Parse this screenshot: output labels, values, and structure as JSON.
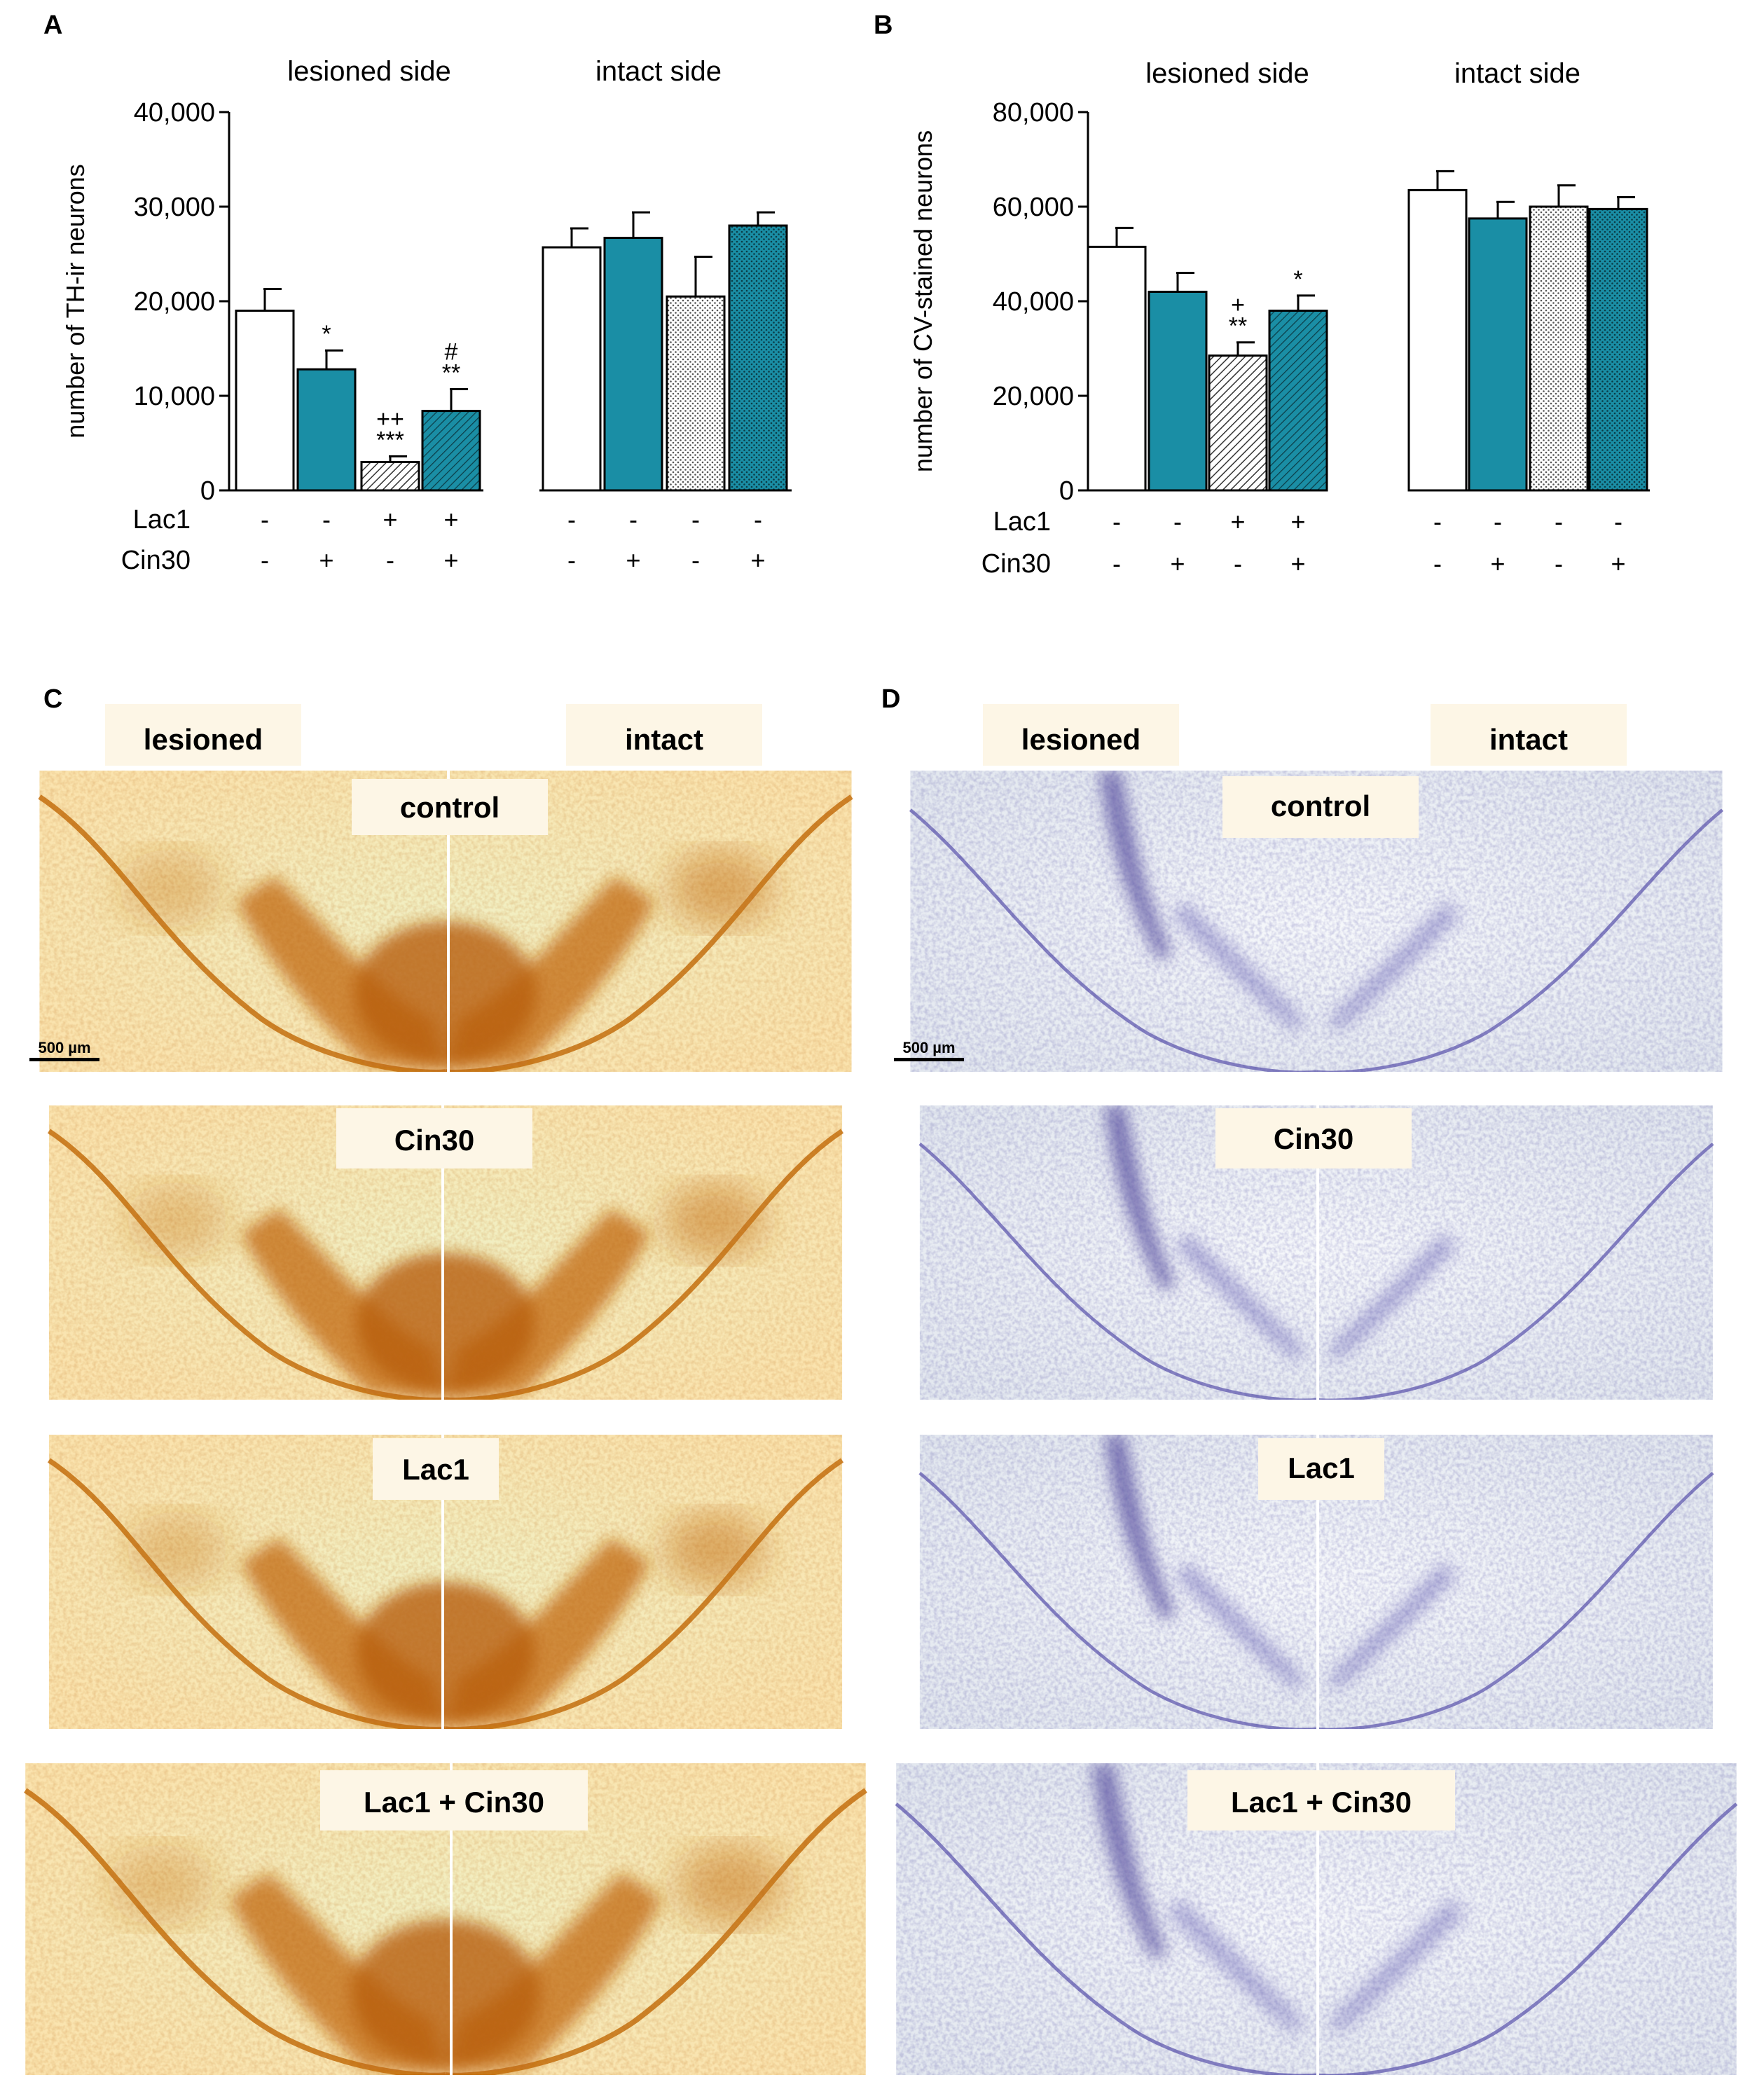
{
  "panels": {
    "A": "A",
    "B": "B",
    "C": "C",
    "D": "D"
  },
  "chart_data": [
    {
      "type": "bar",
      "panel": "A",
      "ylabel": "number of TH-ir neurons",
      "ylim": [
        0,
        40000
      ],
      "ytick_values": [
        0,
        10000,
        20000,
        30000,
        40000
      ],
      "ytick_labels": [
        "0",
        "10,000",
        "20,000",
        "30,000",
        "40,000"
      ],
      "group_labels": [
        "lesioned side",
        "intact side"
      ],
      "row_labels": [
        "Lac1",
        "Cin30"
      ],
      "categories": [
        {
          "group": 0,
          "lac1": "-",
          "cin30": "-",
          "pattern": "white",
          "value": 19000,
          "error": 2300,
          "sig": []
        },
        {
          "group": 0,
          "lac1": "-",
          "cin30": "+",
          "pattern": "teal",
          "value": 12800,
          "error": 2000,
          "sig": [
            "*"
          ]
        },
        {
          "group": 0,
          "lac1": "+",
          "cin30": "-",
          "pattern": "hatch",
          "value": 3000,
          "error": 600,
          "sig": [
            "***",
            "++"
          ]
        },
        {
          "group": 0,
          "lac1": "+",
          "cin30": "+",
          "pattern": "tealhatch",
          "value": 8400,
          "error": 2300,
          "sig": [
            "**",
            "#"
          ]
        },
        {
          "group": 1,
          "lac1": "-",
          "cin30": "-",
          "pattern": "white",
          "value": 25700,
          "error": 2000,
          "sig": []
        },
        {
          "group": 1,
          "lac1": "-",
          "cin30": "+",
          "pattern": "teal",
          "value": 26700,
          "error": 2700,
          "sig": []
        },
        {
          "group": 1,
          "lac1": "-",
          "cin30": "-",
          "pattern": "dots",
          "value": 20500,
          "error": 4200,
          "sig": []
        },
        {
          "group": 1,
          "lac1": "-",
          "cin30": "+",
          "pattern": "tealdots",
          "value": 28000,
          "error": 1400,
          "sig": []
        }
      ]
    },
    {
      "type": "bar",
      "panel": "B",
      "ylabel": "number of CV-stained neurons",
      "ylim": [
        0,
        80000
      ],
      "ytick_values": [
        0,
        20000,
        40000,
        60000,
        80000
      ],
      "ytick_labels": [
        "0",
        "20,000",
        "40,000",
        "60,000",
        "80,000"
      ],
      "group_labels": [
        "lesioned side",
        "intact side"
      ],
      "row_labels": [
        "Lac1",
        "Cin30"
      ],
      "categories": [
        {
          "group": 0,
          "lac1": "-",
          "cin30": "-",
          "pattern": "white",
          "value": 51500,
          "error": 4000,
          "sig": []
        },
        {
          "group": 0,
          "lac1": "-",
          "cin30": "+",
          "pattern": "teal",
          "value": 42000,
          "error": 4000,
          "sig": []
        },
        {
          "group": 0,
          "lac1": "+",
          "cin30": "-",
          "pattern": "hatch",
          "value": 28500,
          "error": 2800,
          "sig": [
            "**",
            "+"
          ]
        },
        {
          "group": 0,
          "lac1": "+",
          "cin30": "+",
          "pattern": "tealhatch",
          "value": 38000,
          "error": 3200,
          "sig": [
            "*"
          ]
        },
        {
          "group": 1,
          "lac1": "-",
          "cin30": "-",
          "pattern": "white",
          "value": 63500,
          "error": 4000,
          "sig": []
        },
        {
          "group": 1,
          "lac1": "-",
          "cin30": "+",
          "pattern": "teal",
          "value": 57500,
          "error": 3500,
          "sig": []
        },
        {
          "group": 1,
          "lac1": "-",
          "cin30": "-",
          "pattern": "dots",
          "value": 60000,
          "error": 4500,
          "sig": []
        },
        {
          "group": 1,
          "lac1": "-",
          "cin30": "+",
          "pattern": "tealdots",
          "value": 59500,
          "error": 2500,
          "sig": []
        }
      ]
    }
  ],
  "colors": {
    "teal": "#1a8ea5",
    "axis": "#000000",
    "th_bg": "#f8edc0",
    "th_stain": "#c9690c",
    "cv_bg": "#eef1f6",
    "cv_stain": "#5a55a8",
    "label_bg": "#fdf6e6"
  },
  "micrographs": {
    "C": {
      "side_labels": [
        "lesioned",
        "intact"
      ],
      "rows": [
        "control",
        "Cin30",
        "Lac1",
        "Lac1 + Cin30"
      ],
      "scale_bar": "500 µm"
    },
    "D": {
      "side_labels": [
        "lesioned",
        "intact"
      ],
      "rows": [
        "control",
        "Cin30",
        "Lac1",
        "Lac1 + Cin30"
      ],
      "scale_bar": "500 µm"
    }
  }
}
